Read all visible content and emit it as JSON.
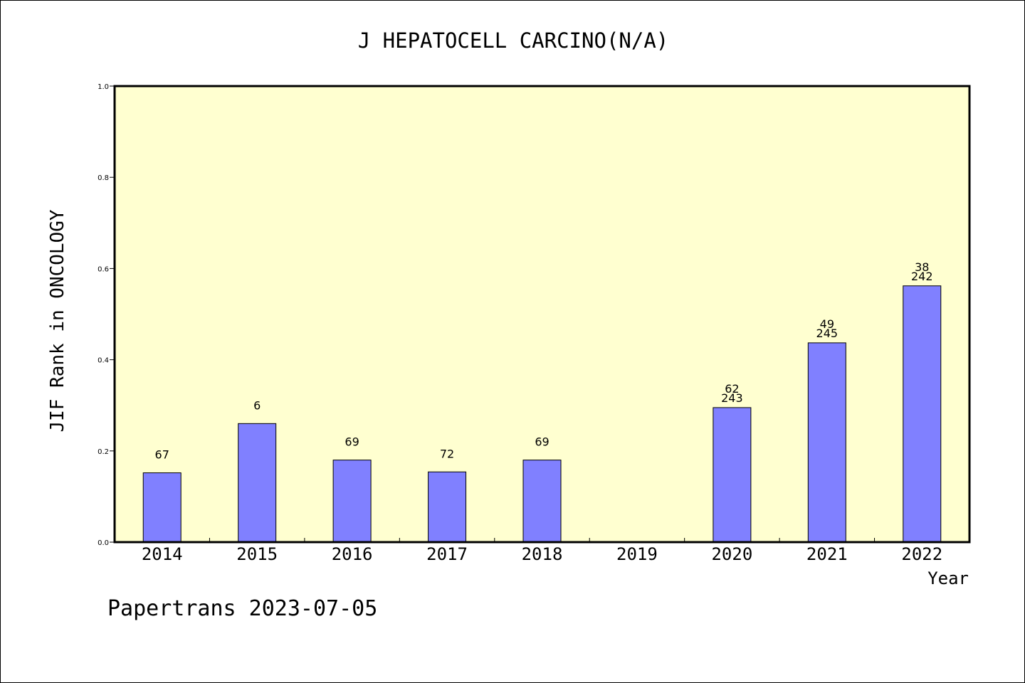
{
  "chart_data": {
    "type": "bar",
    "title": "J HEPATOCELL CARCINO(N/A)",
    "xlabel": "Year",
    "ylabel": "JIF Rank in ONCOLOGY",
    "ylim": [
      0,
      1.0
    ],
    "yticks": [
      "0.0",
      "0.2",
      "0.4",
      "0.6",
      "0.8",
      "1.0"
    ],
    "categories": [
      "2014",
      "2015",
      "2016",
      "2017",
      "2018",
      "2019",
      "2020",
      "2021",
      "2022"
    ],
    "values": [
      0.152,
      0.26,
      0.18,
      0.154,
      0.18,
      null,
      0.295,
      0.437,
      0.562
    ],
    "labels": [
      [
        "67"
      ],
      [
        "6"
      ],
      [
        "69"
      ],
      [
        "72"
      ],
      [
        "69"
      ],
      [],
      [
        "62",
        "243"
      ],
      [
        "49",
        "245"
      ],
      [
        "38",
        "242"
      ]
    ],
    "grid": false,
    "colors": {
      "bar": "#8080ff",
      "plot_background": "#ffffd0",
      "axis": "#000000"
    }
  },
  "footer": "Papertrans 2023-07-05"
}
